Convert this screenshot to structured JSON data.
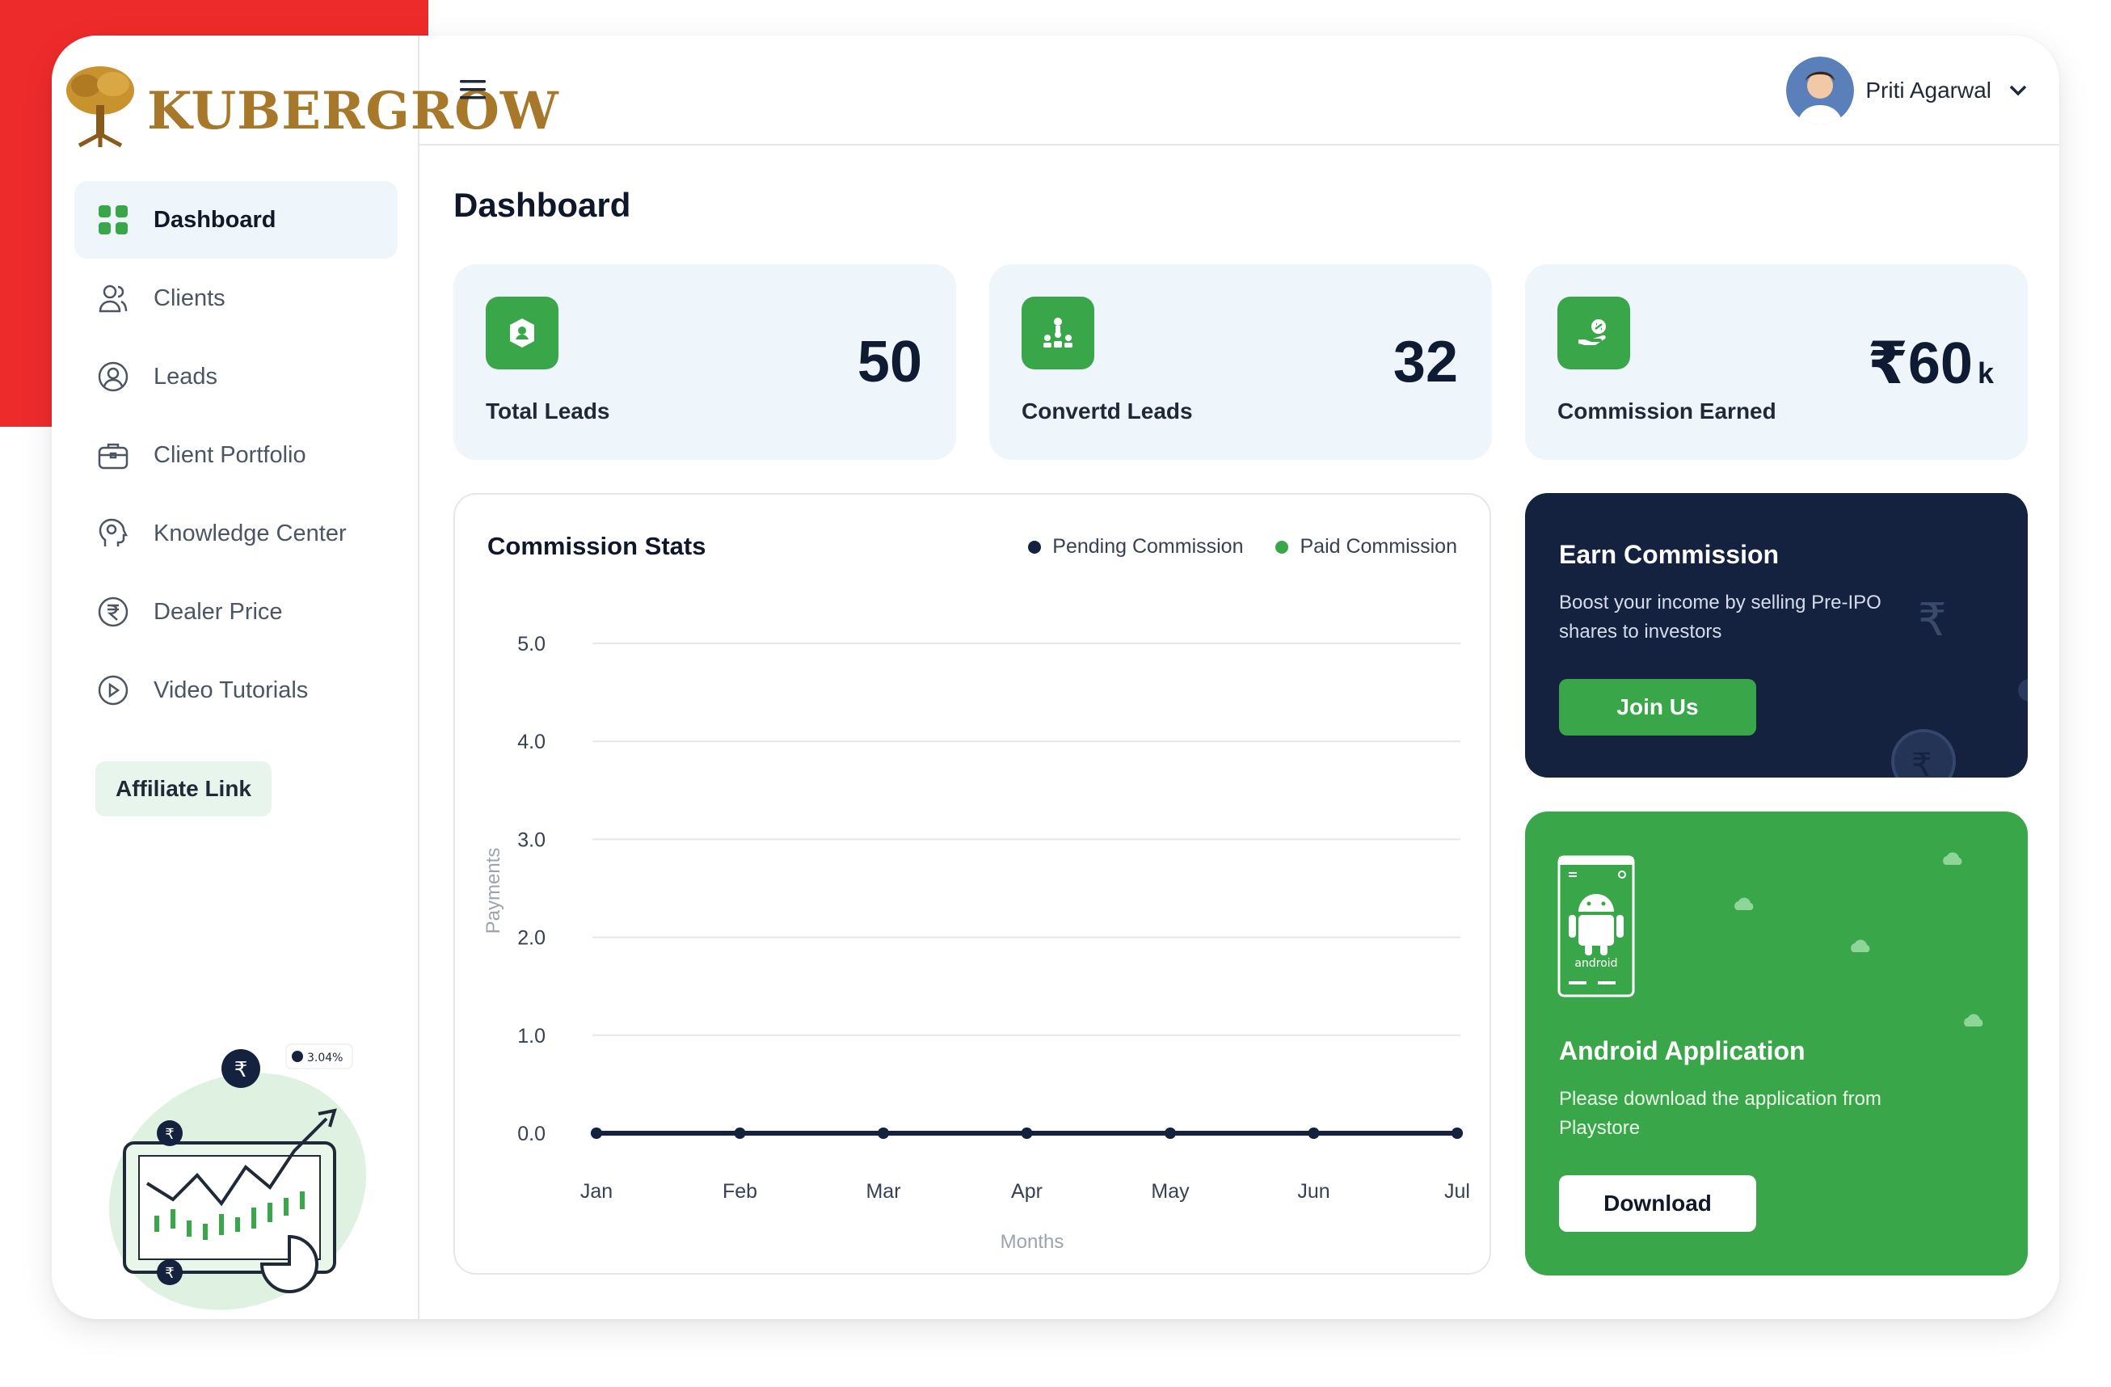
{
  "brand": {
    "name": "KUBERGROW"
  },
  "sidebar": {
    "items": [
      {
        "label": "Dashboard",
        "icon": "grid-icon",
        "active": true
      },
      {
        "label": "Clients",
        "icon": "users-icon"
      },
      {
        "label": "Leads",
        "icon": "user-badge-icon"
      },
      {
        "label": "Client Portfolio",
        "icon": "briefcase-icon"
      },
      {
        "label": "Knowledge Center",
        "icon": "brain-icon"
      },
      {
        "label": "Dealer Price",
        "icon": "rupee-icon"
      },
      {
        "label": "Video Tutorials",
        "icon": "play-icon"
      }
    ],
    "affiliate_label": "Affiliate Link",
    "illustration": {
      "badge": "3.04%"
    }
  },
  "header": {
    "user_name": "Priti Agarwal"
  },
  "page_title": "Dashboard",
  "stats": [
    {
      "label": "Total Leads",
      "value": "50",
      "icon": "lead-icon"
    },
    {
      "label": "Convertd Leads",
      "value": "32",
      "icon": "hierarchy-icon"
    },
    {
      "label": "Commission Earned",
      "value": "₹60",
      "unit": "k",
      "icon": "hand-money-icon"
    }
  ],
  "chart": {
    "title": "Commission Stats",
    "legend": [
      {
        "label": "Pending Commission",
        "color": "#14223f"
      },
      {
        "label": "Paid Commission",
        "color": "#3aa64a"
      }
    ]
  },
  "chart_data": {
    "type": "line",
    "title": "Commission Stats",
    "xlabel": "Months",
    "ylabel": "Payments",
    "categories": [
      "Jan",
      "Feb",
      "Mar",
      "Apr",
      "May",
      "Jun",
      "Jul"
    ],
    "y_ticks": [
      "0.0",
      "1.0",
      "2.0",
      "3.0",
      "4.0",
      "5.0"
    ],
    "ylim": [
      0,
      5
    ],
    "grid": true,
    "legend_position": "top-right",
    "series": [
      {
        "name": "Pending Commission",
        "color": "#14223f",
        "values": [
          0,
          0,
          0,
          0,
          0,
          0,
          0
        ]
      },
      {
        "name": "Paid Commission",
        "color": "#3aa64a",
        "values": [
          0,
          0,
          0,
          0,
          0,
          0,
          0
        ]
      }
    ]
  },
  "earn": {
    "title": "Earn Commission",
    "description": "Boost your income by selling Pre-IPO shares to investors",
    "button": "Join Us"
  },
  "android": {
    "title": "Android Application",
    "description": "Please download the application from Playstore",
    "button": "Download",
    "phone_label": "android"
  },
  "colors": {
    "accent": "#3aa64a",
    "navy": "#14223f",
    "brand_red": "#ee2b2b",
    "card_bg": "#eef5fb"
  }
}
